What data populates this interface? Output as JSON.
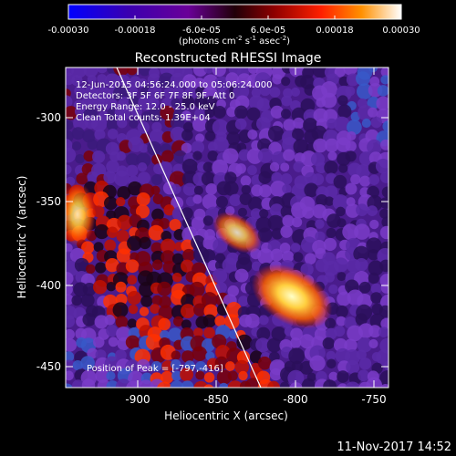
{
  "colorbar": {
    "ticks": [
      "-0.00030",
      "-0.00018",
      "-6.0e-05",
      "6.0e-05",
      "0.00018",
      "0.00030"
    ],
    "unit_prefix": "(photons cm",
    "unit_exp1": "-2",
    "unit_mid1": " s",
    "unit_exp2": "-1",
    "unit_mid2": " asec",
    "unit_exp3": "-2",
    "unit_suffix": ")",
    "colors": [
      "#0000ff",
      "#3a00b0",
      "#6a0098",
      "#200008",
      "#900000",
      "#ff2000",
      "#ff9000",
      "#ffffff"
    ]
  },
  "title": "Reconstructed RHESSI Image",
  "info": {
    "time_range": "12-Jun-2015 04:56:24.000 to 05:06:24.000",
    "detectors": "Detectors: 3F 5F 6F 7F 8F 9F, Att 0",
    "energy": "Energy Range: 12.0 - 25.0 keV",
    "clean": "Clean     Total counts: 1.39E+04",
    "peak": "Position of Peak = [-797,-416]"
  },
  "x_axis": {
    "label": "Heliocentric X (arcsec)",
    "ticks": [
      "-900",
      "-850",
      "-800",
      "-750"
    ]
  },
  "y_axis": {
    "label": "Heliocentric Y (arcsec)",
    "ticks": [
      "-300",
      "-350",
      "-400",
      "-450"
    ]
  },
  "footer_timestamp": "11-Nov-2017 14:52"
}
